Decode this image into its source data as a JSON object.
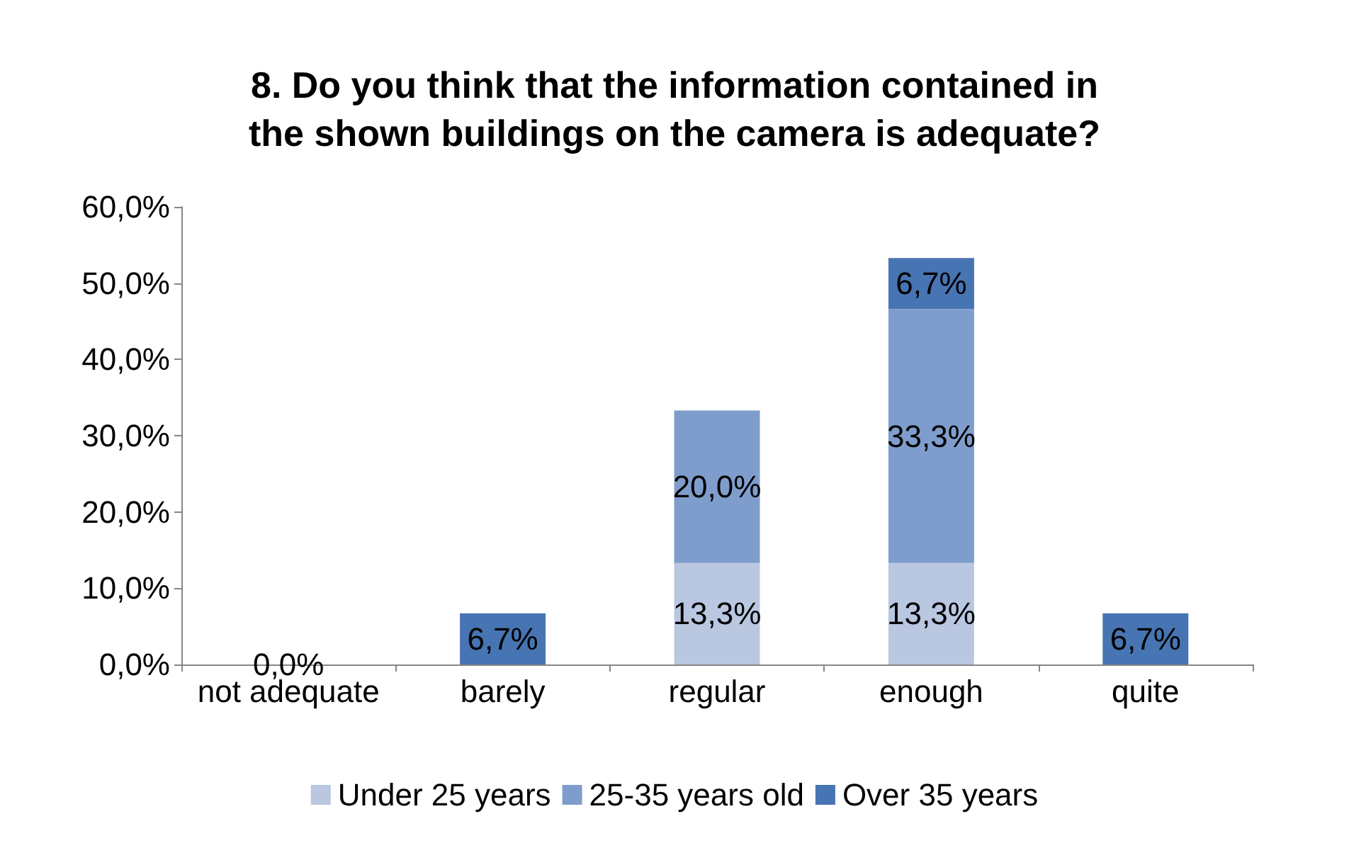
{
  "chart_data": {
    "type": "bar",
    "stacked": true,
    "title": "8. Do you think that the information contained in\nthe shown buildings on the camera is adequate?",
    "categories": [
      "not adequate",
      "barely",
      "regular",
      "enough",
      "quite"
    ],
    "series": [
      {
        "name": "Under 25 years",
        "color": "#b9c7e1",
        "values": [
          0,
          null,
          13.3,
          13.3,
          null
        ],
        "value_labels": [
          "0,0%",
          null,
          "13,3%",
          "13,3%",
          null
        ]
      },
      {
        "name": "25-35 years old",
        "color": "#7f9dcc",
        "values": [
          null,
          null,
          20.0,
          33.3,
          null
        ],
        "value_labels": [
          null,
          null,
          "20,0%",
          "33,3%",
          null
        ]
      },
      {
        "name": "Over 35 years",
        "color": "#4774b2",
        "values": [
          null,
          6.7,
          null,
          6.7,
          6.7
        ],
        "value_labels": [
          null,
          "6,7%",
          null,
          "6,7%",
          "6,7%"
        ]
      }
    ],
    "ylim": [
      0,
      60
    ],
    "yticks": [
      {
        "value": 0,
        "label": "0,0%"
      },
      {
        "value": 10,
        "label": "10,0%"
      },
      {
        "value": 20,
        "label": "20,0%"
      },
      {
        "value": 30,
        "label": "30,0%"
      },
      {
        "value": 40,
        "label": "40,0%"
      },
      {
        "value": 50,
        "label": "50,0%"
      },
      {
        "value": 60,
        "label": "60,0%"
      }
    ],
    "grid": false,
    "legend": "bottom"
  }
}
